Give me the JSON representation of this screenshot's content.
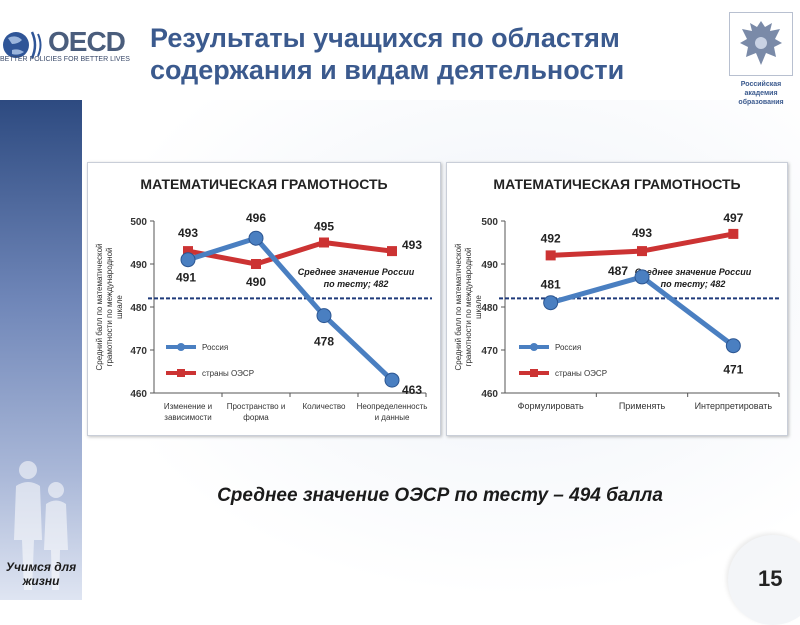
{
  "header": {
    "title": "Результаты учащихся по областям содержания и видам деятельности",
    "logo_left_text": "OECD",
    "logo_left_tagline": "BETTER POLICIES FOR BETTER LIVES",
    "logo_right_text": "Российская академия образования"
  },
  "subtitle": "Среднее значение ОЭСР по тесту – 494 балла",
  "sidebar_caption": "Учимся для жизни",
  "page_number": "15",
  "colors": {
    "russia": "#4a7fc1",
    "oecd": "#cc3333",
    "title": "#3b5a8e",
    "avg_line": "#1f3a7a"
  },
  "chart_data": [
    {
      "type": "line",
      "title": "МАТЕМАТИЧЕСКАЯ ГРАМОТНОСТЬ",
      "ylabel": "Средний балл по математической грамотности по международной шкале",
      "ylim": [
        460,
        500
      ],
      "yticks": [
        460,
        470,
        480,
        490,
        500
      ],
      "categories": [
        "Изменение и зависимости",
        "Пространство и форма",
        "Количество",
        "Неопределенность и данные"
      ],
      "series": [
        {
          "name": "Россия",
          "values": [
            491,
            496,
            478,
            463
          ]
        },
        {
          "name": "страны ОЭСР",
          "values": [
            493,
            490,
            495,
            493
          ]
        }
      ],
      "reference_line": {
        "value": 482,
        "label": "Среднее значение России по тесту; 482"
      },
      "legend": "bottom-left"
    },
    {
      "type": "line",
      "title": "МАТЕМАТИЧЕСКАЯ ГРАМОТНОСТЬ",
      "ylabel": "Средний балл по математической грамотности по международной шкале",
      "ylim": [
        460,
        500
      ],
      "yticks": [
        460,
        470,
        480,
        490,
        500
      ],
      "categories": [
        "Формулировать",
        "Применять",
        "Интерпретировать"
      ],
      "series": [
        {
          "name": "Россия",
          "values": [
            481,
            487,
            471
          ]
        },
        {
          "name": "страны ОЭСР",
          "values": [
            492,
            493,
            497
          ]
        }
      ],
      "reference_line": {
        "value": 482,
        "label": "Среднее значение России по тесту; 482"
      },
      "legend": "bottom-left"
    }
  ]
}
